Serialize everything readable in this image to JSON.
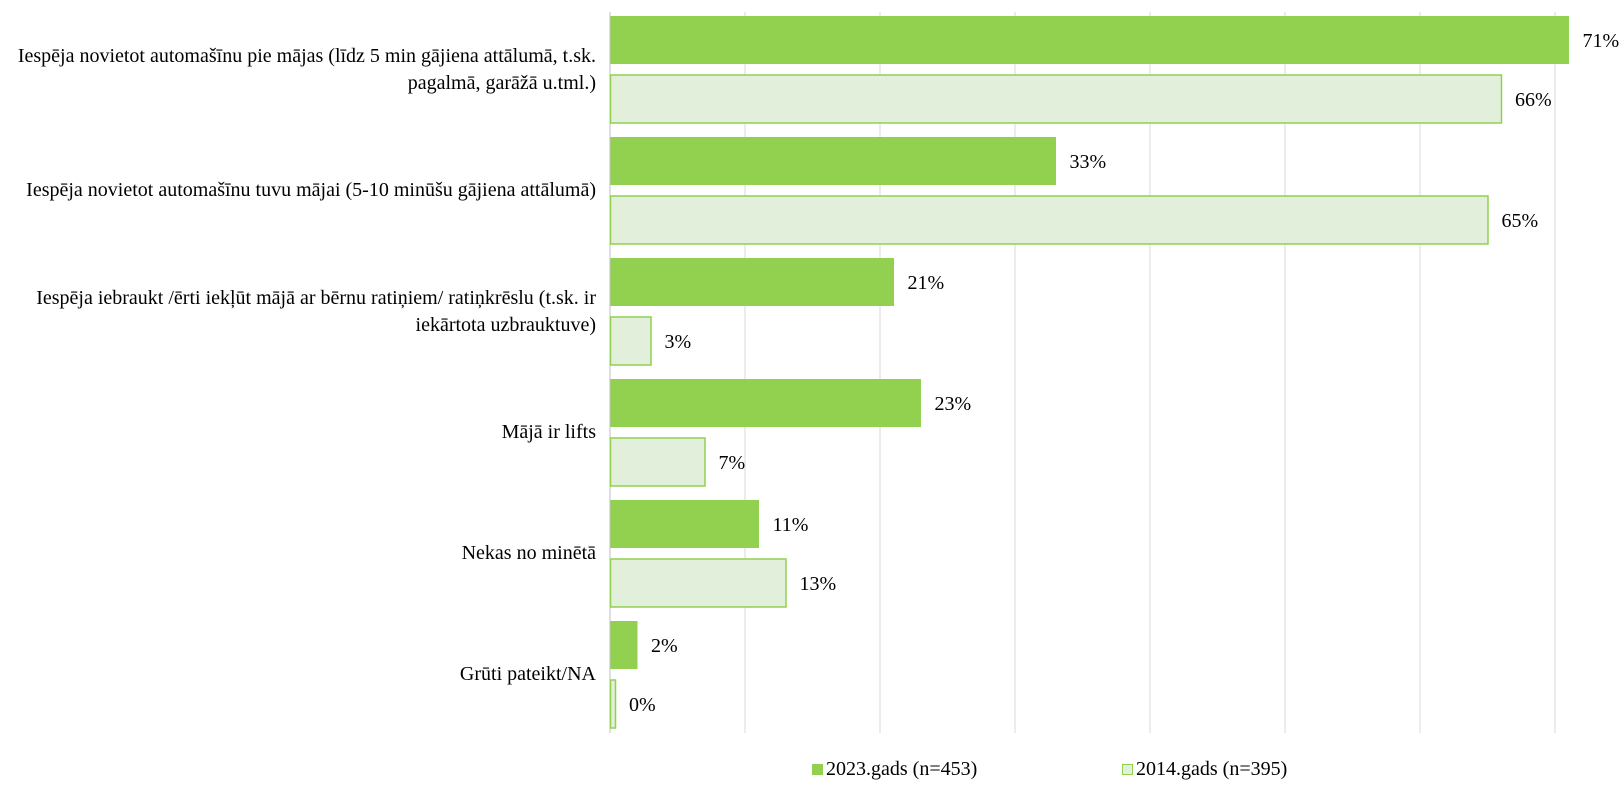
{
  "chart_data": {
    "type": "bar",
    "orientation": "horizontal",
    "categories": [
      "Iespēja novietot automašīnu pie mājas (līdz 5 min gājiena attālumā, t.sk. pagalmā, garāžā u.tml.)",
      "Iespēja novietot automašīnu tuvu mājai (5-10 minūšu gājiena attālumā)",
      "Iespēja iebraukt /ērti iekļūt mājā ar bērnu ratiņiem/ ratiņkrēslu (t.sk. ir iekārtota uzbrauktuve)",
      "Mājā ir lifts",
      "Nekas no minētā",
      "Grūti pateikt/NA"
    ],
    "series": [
      {
        "name": "2023.gads (n=453)",
        "values": [
          71,
          33,
          21,
          23,
          11,
          2
        ],
        "labels": [
          "71%",
          "33%",
          "21%",
          "23%",
          "11%",
          "2%"
        ],
        "color": "#92d050"
      },
      {
        "name": "2014.gads (n=395)",
        "values": [
          66,
          65,
          3,
          7,
          13,
          0
        ],
        "labels": [
          "66%",
          "65%",
          "3%",
          "7%",
          "13%",
          "0%"
        ],
        "color": "#e2efda",
        "stroke": "#92d050"
      }
    ],
    "xlim": [
      0,
      70
    ],
    "grid": true,
    "legend": "bottom"
  }
}
